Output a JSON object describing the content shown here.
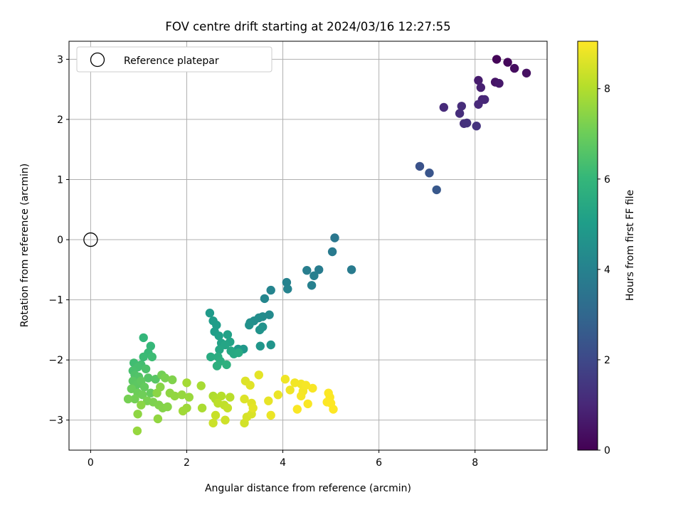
{
  "chart_data": {
    "type": "scatter",
    "title": "FOV centre drift starting at 2024/03/16 12:27:55",
    "xlabel": "Angular distance from reference (arcmin)",
    "ylabel": "Rotation from reference (arcmin)",
    "xlim": [
      -0.45,
      9.5
    ],
    "ylim": [
      -3.5,
      3.3
    ],
    "xticks": [
      "0",
      "2",
      "4",
      "6",
      "8"
    ],
    "yticks": [
      "−3",
      "−2",
      "−1",
      "0",
      "1",
      "2",
      "3"
    ],
    "xtick_values": [
      0,
      2,
      4,
      6,
      8
    ],
    "ytick_values": [
      -3,
      -2,
      -1,
      0,
      1,
      2,
      3
    ],
    "grid": true,
    "legend": {
      "position": "top-left",
      "entries": [
        "Reference platepar"
      ]
    },
    "reference_point": {
      "x": 0,
      "y": 0
    },
    "colorbar": {
      "label": "Hours from first FF file",
      "colormap": "viridis",
      "range": [
        0,
        9.05
      ],
      "ticks": [
        "0",
        "2",
        "4",
        "6",
        "8"
      ],
      "tick_values": [
        0,
        2,
        4,
        6,
        8
      ]
    },
    "series": [
      {
        "points": [
          [
            8.45,
            3.0,
            0.1
          ],
          [
            8.68,
            2.95,
            0.2
          ],
          [
            8.82,
            2.85,
            0.3
          ],
          [
            9.07,
            2.77,
            0.4
          ],
          [
            8.42,
            2.62,
            0.5
          ],
          [
            8.5,
            2.6,
            0.6
          ],
          [
            8.07,
            2.65,
            0.7
          ],
          [
            8.12,
            2.53,
            0.8
          ],
          [
            8.15,
            2.33,
            0.9
          ],
          [
            8.2,
            2.33,
            1.0
          ],
          [
            8.07,
            2.25,
            1.05
          ],
          [
            7.35,
            2.2,
            1.1
          ],
          [
            7.72,
            2.22,
            1.15
          ],
          [
            7.68,
            2.1,
            1.2
          ],
          [
            7.77,
            1.93,
            1.25
          ],
          [
            7.83,
            1.94,
            1.3
          ],
          [
            8.03,
            1.89,
            1.35
          ],
          [
            6.85,
            1.22,
            2.3
          ],
          [
            7.05,
            1.11,
            2.4
          ],
          [
            7.2,
            0.83,
            2.5
          ],
          [
            5.08,
            0.03,
            3.6
          ],
          [
            5.03,
            -0.2,
            3.7
          ],
          [
            5.43,
            -0.5,
            3.75
          ],
          [
            4.75,
            -0.5,
            3.8
          ],
          [
            4.5,
            -0.51,
            3.85
          ],
          [
            4.65,
            -0.6,
            3.9
          ],
          [
            4.6,
            -0.76,
            3.95
          ],
          [
            4.08,
            -0.71,
            4.0
          ],
          [
            4.1,
            -0.82,
            4.05
          ],
          [
            3.75,
            -0.84,
            4.1
          ],
          [
            3.62,
            -0.98,
            4.15
          ],
          [
            3.72,
            -1.25,
            4.3
          ],
          [
            3.58,
            -1.28,
            4.35
          ],
          [
            3.5,
            -1.3,
            4.4
          ],
          [
            3.4,
            -1.35,
            4.45
          ],
          [
            3.32,
            -1.38,
            4.5
          ],
          [
            3.3,
            -1.42,
            4.55
          ],
          [
            3.58,
            -1.45,
            4.6
          ],
          [
            3.52,
            -1.5,
            4.65
          ],
          [
            3.75,
            -1.75,
            4.7
          ],
          [
            3.53,
            -1.77,
            4.75
          ],
          [
            3.18,
            -1.82,
            4.8
          ],
          [
            3.07,
            -1.82,
            4.85
          ],
          [
            2.48,
            -1.22,
            4.9
          ],
          [
            2.55,
            -1.35,
            4.95
          ],
          [
            2.62,
            -1.42,
            5.0
          ],
          [
            2.58,
            -1.53,
            5.05
          ],
          [
            2.67,
            -1.6,
            5.1
          ],
          [
            2.85,
            -1.58,
            5.15
          ],
          [
            2.72,
            -1.72,
            5.2
          ],
          [
            2.9,
            -1.7,
            5.25
          ],
          [
            2.8,
            -1.75,
            5.3
          ],
          [
            2.68,
            -1.83,
            5.35
          ],
          [
            2.92,
            -1.85,
            5.4
          ],
          [
            2.98,
            -1.9,
            5.45
          ],
          [
            3.08,
            -1.88,
            5.5
          ],
          [
            2.5,
            -1.95,
            5.55
          ],
          [
            2.65,
            -1.95,
            5.6
          ],
          [
            2.7,
            -2.02,
            5.65
          ],
          [
            2.63,
            -2.1,
            5.7
          ],
          [
            2.83,
            -2.08,
            5.75
          ],
          [
            1.1,
            -1.63,
            6.0
          ],
          [
            1.25,
            -1.77,
            6.05
          ],
          [
            1.2,
            -1.88,
            6.1
          ],
          [
            1.1,
            -1.95,
            6.15
          ],
          [
            1.28,
            -1.95,
            6.2
          ],
          [
            0.9,
            -2.05,
            6.25
          ],
          [
            1.05,
            -2.08,
            6.3
          ],
          [
            0.98,
            -2.12,
            6.35
          ],
          [
            0.88,
            -2.18,
            6.4
          ],
          [
            1.15,
            -2.15,
            6.45
          ],
          [
            0.92,
            -2.25,
            6.5
          ],
          [
            1.0,
            -2.28,
            6.55
          ],
          [
            1.2,
            -2.3,
            6.6
          ],
          [
            1.35,
            -2.32,
            6.65
          ],
          [
            0.88,
            -2.35,
            6.7
          ],
          [
            0.95,
            -2.42,
            6.75
          ],
          [
            1.05,
            -2.35,
            6.8
          ],
          [
            1.12,
            -2.45,
            6.85
          ],
          [
            1.25,
            -2.55,
            6.9
          ],
          [
            0.85,
            -2.48,
            6.95
          ],
          [
            0.98,
            -2.55,
            7.0
          ],
          [
            1.08,
            -2.58,
            7.05
          ],
          [
            0.92,
            -2.65,
            7.1
          ],
          [
            0.78,
            -2.65,
            7.15
          ],
          [
            1.18,
            -2.68,
            7.2
          ],
          [
            1.3,
            -2.7,
            7.25
          ],
          [
            1.42,
            -2.75,
            7.3
          ],
          [
            1.5,
            -2.8,
            7.35
          ],
          [
            1.6,
            -2.78,
            7.4
          ],
          [
            1.05,
            -2.75,
            7.45
          ],
          [
            0.98,
            -2.9,
            7.5
          ],
          [
            1.4,
            -2.98,
            7.55
          ],
          [
            0.97,
            -3.18,
            7.6
          ],
          [
            1.48,
            -2.25,
            7.1
          ],
          [
            1.55,
            -2.3,
            7.2
          ],
          [
            1.7,
            -2.33,
            7.3
          ],
          [
            1.45,
            -2.45,
            7.4
          ],
          [
            1.38,
            -2.55,
            7.45
          ],
          [
            1.65,
            -2.55,
            7.5
          ],
          [
            1.75,
            -2.6,
            7.55
          ],
          [
            1.9,
            -2.58,
            7.6
          ],
          [
            2.05,
            -2.62,
            7.65
          ],
          [
            2.0,
            -2.8,
            7.7
          ],
          [
            1.92,
            -2.85,
            7.75
          ],
          [
            2.0,
            -2.38,
            7.8
          ],
          [
            2.3,
            -2.43,
            7.85
          ],
          [
            2.32,
            -2.8,
            7.9
          ],
          [
            2.55,
            -2.6,
            7.95
          ],
          [
            2.6,
            -2.65,
            8.0
          ],
          [
            2.72,
            -2.6,
            8.05
          ],
          [
            2.9,
            -2.62,
            8.1
          ],
          [
            2.65,
            -2.72,
            8.15
          ],
          [
            2.78,
            -2.75,
            8.2
          ],
          [
            2.85,
            -2.8,
            8.25
          ],
          [
            2.6,
            -2.92,
            8.3
          ],
          [
            2.55,
            -3.05,
            8.35
          ],
          [
            2.8,
            -3.0,
            8.4
          ],
          [
            3.2,
            -3.05,
            8.45
          ],
          [
            3.25,
            -2.95,
            8.5
          ],
          [
            3.35,
            -2.9,
            8.55
          ],
          [
            3.2,
            -2.65,
            8.6
          ],
          [
            3.35,
            -2.72,
            8.65
          ],
          [
            3.38,
            -2.8,
            8.7
          ],
          [
            3.22,
            -2.35,
            8.6
          ],
          [
            3.32,
            -2.42,
            8.65
          ],
          [
            3.5,
            -2.25,
            8.7
          ],
          [
            3.7,
            -2.68,
            8.75
          ],
          [
            3.75,
            -2.92,
            8.8
          ],
          [
            3.9,
            -2.58,
            8.8
          ],
          [
            4.05,
            -2.32,
            8.85
          ],
          [
            4.15,
            -2.5,
            8.85
          ],
          [
            4.25,
            -2.38,
            8.9
          ],
          [
            4.38,
            -2.4,
            8.9
          ],
          [
            4.42,
            -2.52,
            8.92
          ],
          [
            4.48,
            -2.42,
            8.95
          ],
          [
            4.38,
            -2.6,
            8.95
          ],
          [
            4.62,
            -2.47,
            8.98
          ],
          [
            4.52,
            -2.73,
            9.0
          ],
          [
            4.3,
            -2.82,
            9.0
          ],
          [
            4.95,
            -2.55,
            9.02
          ],
          [
            4.98,
            -2.62,
            9.02
          ],
          [
            4.92,
            -2.7,
            9.03
          ],
          [
            5.05,
            -2.82,
            9.05
          ],
          [
            5.0,
            -2.72,
            9.05
          ]
        ]
      }
    ]
  }
}
